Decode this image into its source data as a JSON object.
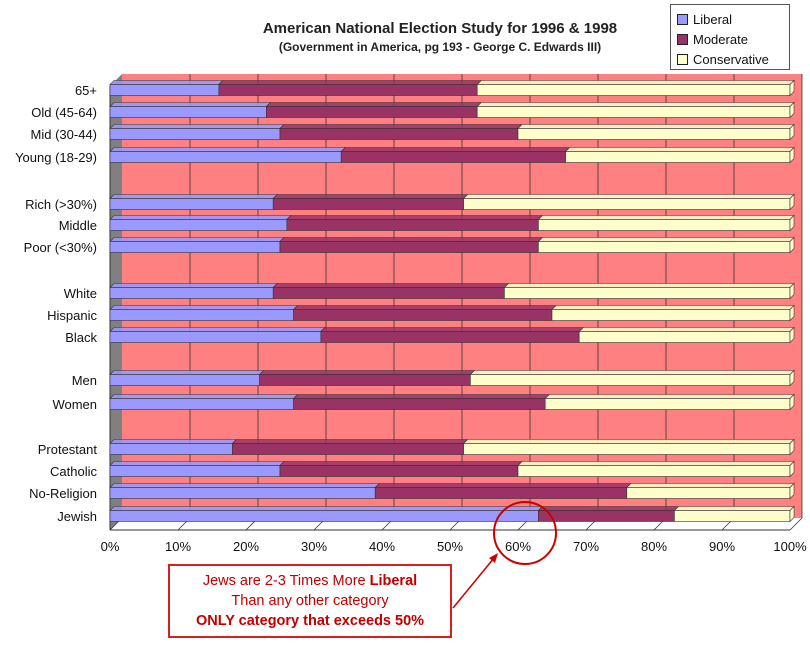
{
  "chart_data": {
    "type": "bar",
    "orientation": "horizontal",
    "stacked": "percent",
    "title": "American National Election Study for 1996 & 1998",
    "subtitle": "(Government in America, pg 193 - George C. Edwards III)",
    "categories": [
      "65+",
      "Old (45-64)",
      "Mid (30-44)",
      "Young (18-29)",
      "Rich (>30%)",
      "Middle",
      "Poor (<30%)",
      "White",
      "Hispanic",
      "Black",
      "Men",
      "Women",
      "Protestant",
      "Catholic",
      "No-Religion",
      "Jewish"
    ],
    "series": [
      {
        "name": "Liberal",
        "color": "#9999ff",
        "values": [
          16,
          23,
          25,
          34,
          24,
          26,
          25,
          24,
          27,
          31,
          22,
          27,
          18,
          25,
          39,
          63
        ]
      },
      {
        "name": "Moderate",
        "color": "#993366",
        "values": [
          38,
          31,
          35,
          33,
          28,
          37,
          38,
          34,
          38,
          38,
          31,
          37,
          34,
          35,
          37,
          20
        ]
      },
      {
        "name": "Conservative",
        "color": "#ffffcc",
        "values": [
          46,
          46,
          40,
          33,
          48,
          37,
          37,
          42,
          35,
          31,
          47,
          36,
          48,
          40,
          24,
          17
        ]
      }
    ],
    "xlim": [
      0,
      100
    ],
    "x_ticks": [
      "0%",
      "10%",
      "20%",
      "30%",
      "40%",
      "50%",
      "60%",
      "70%",
      "80%",
      "90%",
      "100%"
    ],
    "grid": true,
    "legend_position": "top-right",
    "colors": {
      "plot_background": "#ff8080",
      "wall": "#808080",
      "grid": "#333333",
      "annotation": "#cc0000"
    }
  },
  "annotation": {
    "line1_pre": "Jews are 2-3 Times More ",
    "line1_bold": "Liberal",
    "line2": "Than any other category",
    "line3": "ONLY category that exceeds 50%"
  }
}
